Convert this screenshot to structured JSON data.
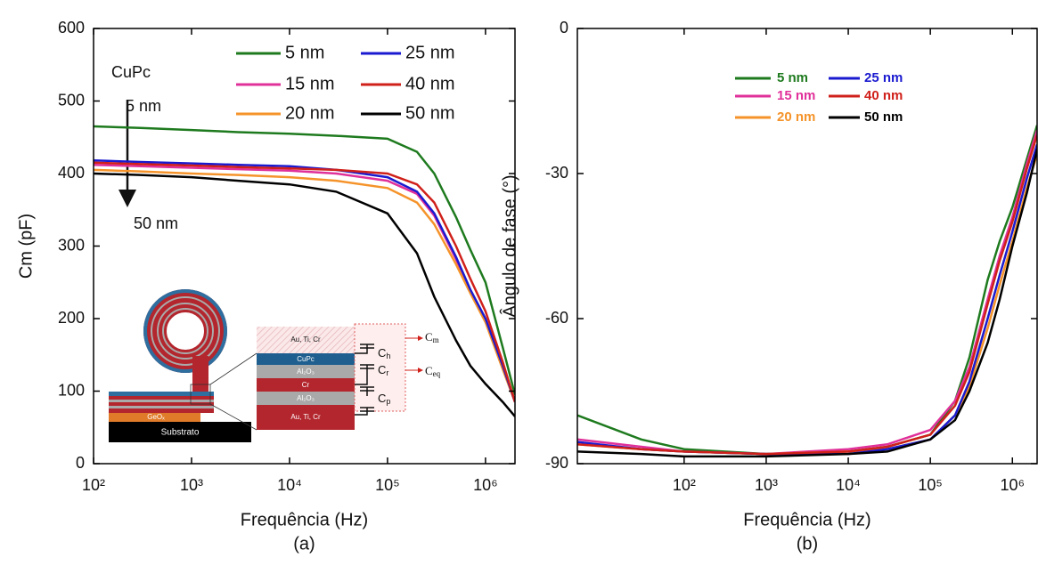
{
  "chart_data": [
    {
      "type": "line",
      "xlabel": "Frequência (Hz)",
      "ylabel": "Cm (pF)",
      "caption": "(a)",
      "log_x": true,
      "xlim": [
        100,
        2000000
      ],
      "ylim": [
        0,
        600
      ],
      "xticks": [
        {
          "value": 100,
          "label": "10²"
        },
        {
          "value": 1000,
          "label": "10³"
        },
        {
          "value": 10000,
          "label": "10⁴"
        },
        {
          "value": 100000,
          "label": "10⁵"
        },
        {
          "value": 1000000,
          "label": "10⁶"
        }
      ],
      "yticks": [
        0,
        100,
        200,
        300,
        400,
        500,
        600
      ],
      "annotations": [
        "CuPc",
        "5 nm",
        "50 nm"
      ],
      "x": [
        100,
        300,
        1000,
        3000,
        10000,
        30000,
        100000,
        200000,
        300000,
        500000,
        700000,
        1000000,
        1500000,
        2000000
      ],
      "series": [
        {
          "name": "5 nm",
          "color": "#1e7a1e",
          "values": [
            465,
            463,
            460,
            457,
            455,
            452,
            448,
            430,
            400,
            340,
            295,
            250,
            160,
            95
          ]
        },
        {
          "name": "15 nm",
          "color": "#e0309a",
          "values": [
            412,
            410,
            408,
            406,
            404,
            400,
            390,
            372,
            342,
            282,
            238,
            198,
            133,
            85
          ]
        },
        {
          "name": "20 nm",
          "color": "#f5932a",
          "values": [
            405,
            403,
            400,
            398,
            395,
            390,
            380,
            360,
            330,
            275,
            235,
            195,
            130,
            85
          ]
        },
        {
          "name": "25 nm",
          "color": "#1a1ad0",
          "values": [
            418,
            416,
            414,
            412,
            410,
            405,
            395,
            375,
            345,
            285,
            240,
            200,
            135,
            85
          ]
        },
        {
          "name": "40 nm",
          "color": "#d0201a",
          "values": [
            415,
            413,
            411,
            409,
            407,
            405,
            400,
            385,
            360,
            300,
            255,
            210,
            140,
            85
          ]
        },
        {
          "name": "50 nm",
          "color": "#000000",
          "values": [
            400,
            398,
            395,
            390,
            385,
            375,
            345,
            290,
            230,
            170,
            135,
            110,
            85,
            65
          ]
        }
      ]
    },
    {
      "type": "line",
      "xlabel": "Frequência (Hz)",
      "ylabel": "Ângulo de fase (°)",
      "caption": "(b)",
      "log_x": true,
      "xlim": [
        5,
        2000000
      ],
      "ylim": [
        -90,
        0
      ],
      "xticks": [
        {
          "value": 100,
          "label": "10²"
        },
        {
          "value": 1000,
          "label": "10³"
        },
        {
          "value": 10000,
          "label": "10⁴"
        },
        {
          "value": 100000,
          "label": "10⁵"
        },
        {
          "value": 1000000,
          "label": "10⁶"
        }
      ],
      "yticks": [
        0,
        -30,
        -60,
        -90
      ],
      "x": [
        5,
        30,
        100,
        1000,
        10000,
        30000,
        100000,
        200000,
        300000,
        500000,
        700000,
        1000000,
        1500000,
        2000000
      ],
      "series": [
        {
          "name": "5 nm",
          "color": "#1e7a1e",
          "values": [
            -80,
            -85,
            -87,
            -88,
            -87.5,
            -86.5,
            -84,
            -77,
            -68,
            -52,
            -44,
            -37,
            -27,
            -20
          ]
        },
        {
          "name": "15 nm",
          "color": "#e0309a",
          "values": [
            -85,
            -86.5,
            -87.5,
            -88,
            -87,
            -86,
            -83,
            -77,
            -70,
            -56,
            -47,
            -39,
            -28,
            -21
          ]
        },
        {
          "name": "20 nm",
          "color": "#f5932a",
          "values": [
            -86,
            -87,
            -87.5,
            -88,
            -87.5,
            -87,
            -85,
            -80,
            -74,
            -62,
            -53,
            -44,
            -33,
            -26
          ]
        },
        {
          "name": "25 nm",
          "color": "#1a1ad0",
          "values": [
            -85.5,
            -87,
            -87.5,
            -88,
            -88,
            -87,
            -85,
            -80,
            -73,
            -60,
            -51,
            -42,
            -31,
            -24
          ]
        },
        {
          "name": "40 nm",
          "color": "#d0201a",
          "values": [
            -86,
            -87,
            -87.5,
            -88,
            -87.5,
            -86.5,
            -84,
            -78,
            -71,
            -57,
            -48,
            -40,
            -29,
            -22
          ]
        },
        {
          "name": "50 nm",
          "color": "#000000",
          "values": [
            -87.5,
            -88,
            -88.5,
            -88.5,
            -88,
            -87.5,
            -85,
            -81,
            -75,
            -65,
            -56,
            -45,
            -34,
            -25
          ]
        }
      ]
    }
  ],
  "inset": {
    "stack": [
      "Au, Ti, Cr",
      "CuPc",
      "Al₂O₃",
      "Cr",
      "Al₂O₃",
      "Au, Ti, Cr"
    ],
    "base_layers": [
      "GeOₓ",
      "Substrato"
    ],
    "capacitors": [
      {
        "base": "C",
        "sub": "h"
      },
      {
        "base": "C",
        "sub": "r"
      },
      {
        "base": "C",
        "sub": "p"
      },
      {
        "base": "C",
        "sub": "m"
      },
      {
        "base": "C",
        "sub": "eq"
      }
    ]
  }
}
